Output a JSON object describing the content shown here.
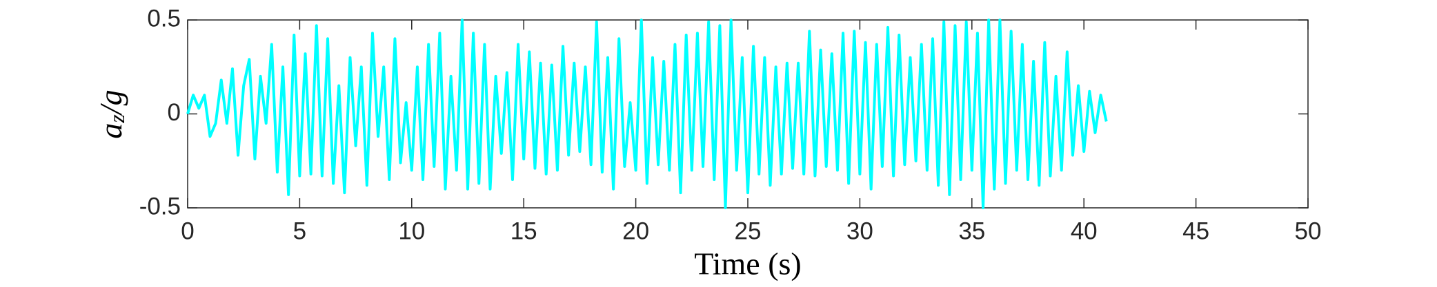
{
  "chart_data": {
    "type": "line",
    "xlabel": "Time (s)",
    "ylabel": [
      "a",
      "z",
      "/g"
    ],
    "xlim": [
      0,
      50
    ],
    "xticks": [
      0,
      5,
      10,
      15,
      20,
      25,
      30,
      35,
      40,
      45,
      50
    ],
    "ylim": [
      -0.5,
      0.5
    ],
    "yticks": [
      -0.5,
      0,
      0.5
    ],
    "x": [
      0,
      0.25,
      0.5,
      0.75,
      1,
      1.25,
      1.5,
      1.75,
      2,
      2.25,
      2.5,
      2.75,
      3,
      3.25,
      3.5,
      3.75,
      4,
      4.25,
      4.5,
      4.75,
      5,
      5.25,
      5.5,
      5.75,
      6,
      6.25,
      6.5,
      6.75,
      7,
      7.25,
      7.5,
      7.75,
      8,
      8.25,
      8.5,
      8.75,
      9,
      9.25,
      9.5,
      9.75,
      10,
      10.25,
      10.5,
      10.75,
      11,
      11.25,
      11.5,
      11.75,
      12,
      12.25,
      12.5,
      12.75,
      13,
      13.25,
      13.5,
      13.75,
      14,
      14.25,
      14.5,
      14.75,
      15,
      15.25,
      15.5,
      15.75,
      16,
      16.25,
      16.5,
      16.75,
      17,
      17.25,
      17.5,
      17.75,
      18,
      18.25,
      18.5,
      18.75,
      19,
      19.25,
      19.5,
      19.75,
      20,
      20.25,
      20.5,
      20.75,
      21,
      21.25,
      21.5,
      21.75,
      22,
      22.25,
      22.5,
      22.75,
      23,
      23.25,
      23.5,
      23.75,
      24,
      24.25,
      24.5,
      24.75,
      25,
      25.25,
      25.5,
      25.75,
      26,
      26.25,
      26.5,
      26.75,
      27,
      27.25,
      27.5,
      27.75,
      28,
      28.25,
      28.5,
      28.75,
      29,
      29.25,
      29.5,
      29.75,
      30,
      30.25,
      30.5,
      30.75,
      31,
      31.25,
      31.5,
      31.75,
      32,
      32.25,
      32.5,
      32.75,
      33,
      33.25,
      33.5,
      33.75,
      34,
      34.25,
      34.5,
      34.75,
      35,
      35.25,
      35.5,
      35.75,
      36,
      36.25,
      36.5,
      36.75,
      37,
      37.25,
      37.5,
      37.75,
      38,
      38.25,
      38.5,
      38.75,
      39,
      39.25,
      39.5,
      39.75,
      40,
      40.25,
      40.5,
      40.75,
      41
    ],
    "series": [
      {
        "color": "#00ffff",
        "values": [
          0,
          0.1,
          0.03,
          0.1,
          -0.12,
          -0.05,
          0.18,
          -0.05,
          0.24,
          -0.22,
          0.15,
          0.29,
          -0.24,
          0.2,
          -0.05,
          0.37,
          -0.31,
          0.25,
          -0.43,
          0.42,
          -0.33,
          0.32,
          -0.32,
          0.47,
          -0.33,
          0.4,
          -0.37,
          0.15,
          -0.42,
          0.3,
          -0.17,
          0.25,
          -0.38,
          0.43,
          -0.12,
          0.25,
          -0.35,
          0.4,
          -0.26,
          0.06,
          -0.3,
          0.25,
          -0.35,
          0.37,
          -0.28,
          0.43,
          -0.4,
          0.2,
          -0.3,
          0.5,
          -0.4,
          0.43,
          -0.37,
          0.37,
          -0.4,
          0.2,
          -0.21,
          0.22,
          -0.35,
          0.37,
          -0.24,
          0.33,
          -0.29,
          0.27,
          -0.32,
          0.26,
          -0.3,
          0.36,
          -0.22,
          0.27,
          -0.2,
          0.25,
          -0.27,
          0.49,
          -0.31,
          0.3,
          -0.4,
          0.4,
          -0.28,
          0.06,
          -0.3,
          0.5,
          -0.37,
          0.3,
          -0.27,
          0.28,
          -0.3,
          0.37,
          -0.42,
          0.42,
          -0.3,
          0.43,
          -0.28,
          0.49,
          -0.35,
          0.47,
          -0.5,
          0.5,
          -0.3,
          0.3,
          -0.42,
          0.36,
          -0.32,
          0.3,
          -0.38,
          0.25,
          -0.32,
          0.27,
          -0.29,
          0.27,
          -0.32,
          0.44,
          -0.33,
          0.34,
          -0.28,
          0.32,
          -0.3,
          0.43,
          -0.37,
          0.44,
          -0.32,
          0.38,
          -0.4,
          0.37,
          -0.28,
          0.46,
          -0.33,
          0.42,
          -0.27,
          0.3,
          -0.25,
          0.37,
          -0.3,
          0.4,
          -0.38,
          0.49,
          -0.43,
          0.47,
          -0.35,
          0.49,
          -0.3,
          0.43,
          -0.5,
          0.5,
          -0.4,
          0.5,
          -0.37,
          0.44,
          -0.3,
          0.37,
          -0.35,
          0.28,
          -0.38,
          0.38,
          -0.33,
          0.2,
          -0.3,
          0.33,
          -0.22,
          0.15,
          -0.2,
          0.12,
          -0.1,
          0.1,
          -0.04
        ]
      }
    ]
  }
}
